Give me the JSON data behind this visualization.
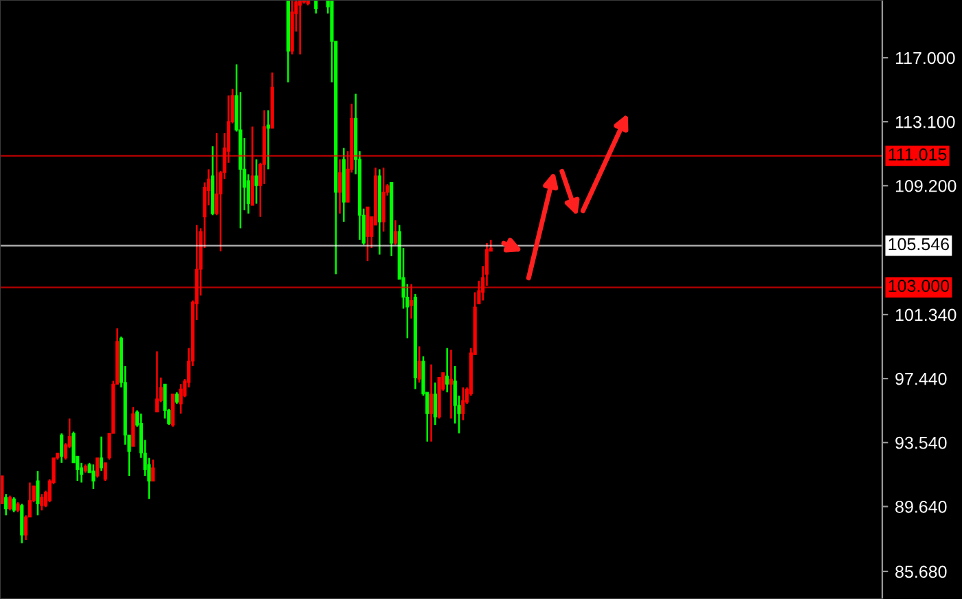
{
  "chart_data": {
    "type": "candlestick",
    "categories": [
      null,
      null,
      null,
      null,
      null,
      null,
      null,
      null,
      null,
      null,
      null,
      null,
      null,
      null,
      null,
      null,
      null,
      null,
      null,
      null,
      null,
      null,
      null,
      null,
      null,
      null,
      null,
      null,
      null,
      null,
      null,
      null,
      null,
      null,
      null,
      null,
      null,
      null,
      null,
      null,
      null,
      null,
      null,
      null,
      null,
      null,
      null,
      null,
      null,
      null,
      null,
      null,
      null,
      null,
      null,
      null,
      null,
      null,
      null,
      null,
      null,
      null,
      null,
      null,
      null,
      null,
      null,
      null,
      null,
      null,
      null,
      null,
      null,
      null,
      null,
      null,
      null,
      null,
      null,
      null,
      null,
      null,
      null,
      null,
      null,
      null,
      null,
      null,
      null,
      null,
      null,
      null,
      null,
      null,
      null,
      null,
      null,
      null,
      null,
      null,
      null,
      null,
      null,
      null,
      null,
      null,
      null,
      null,
      null,
      null,
      null,
      null,
      null,
      null,
      null,
      null,
      null,
      null,
      null,
      null,
      null,
      null,
      null,
      null,
      null,
      null,
      null,
      null,
      null,
      null,
      null,
      null,
      null,
      null,
      null,
      null,
      null,
      null,
      null,
      null,
      null,
      null,
      null,
      null,
      null,
      null,
      null,
      null,
      null,
      null,
      null,
      null,
      null,
      null,
      null,
      null,
      null,
      null,
      null,
      null,
      null,
      null,
      null,
      null,
      null,
      null,
      null,
      null,
      null,
      null,
      null,
      null,
      null,
      null,
      null,
      null,
      null,
      null,
      null,
      null,
      null,
      null,
      null,
      null,
      null,
      null,
      null,
      null,
      null,
      null,
      null,
      null,
      null,
      null,
      null,
      null,
      null,
      null,
      null,
      null,
      null,
      null,
      null,
      null,
      null,
      null,
      null,
      null,
      null,
      null,
      null,
      null,
      null,
      null,
      null,
      null,
      null,
      null,
      null,
      null,
      null,
      null
    ],
    "ohlc": [
      [
        89.8,
        91.5,
        89.8,
        91.5
      ],
      [
        90.2,
        90.4,
        89.1,
        89.5
      ],
      [
        89.5,
        90.3,
        89.4,
        90.2
      ],
      [
        90.1,
        90.2,
        89.3,
        89.4
      ],
      [
        89.4,
        89.9,
        89.3,
        89.8
      ],
      [
        89.7,
        89.8,
        87.4,
        87.9
      ],
      [
        87.9,
        89.1,
        87.6,
        89.0
      ],
      [
        89.0,
        91.1,
        89.0,
        90.0
      ],
      [
        90.0,
        90.9,
        89.9,
        90.9
      ],
      [
        91.2,
        91.8,
        89.1,
        89.8
      ],
      [
        89.7,
        90.4,
        89.4,
        90.2
      ],
      [
        89.7,
        90.6,
        89.6,
        90.5
      ],
      [
        90.0,
        91.3,
        89.9,
        91.2
      ],
      [
        91.1,
        92.6,
        91.0,
        92.6
      ],
      [
        92.6,
        92.9,
        92.5,
        92.9
      ],
      [
        94.0,
        94.1,
        92.3,
        92.7
      ],
      [
        92.6,
        93.5,
        92.5,
        93.4
      ],
      [
        93.3,
        95.0,
        93.2,
        93.9
      ],
      [
        94.1,
        94.2,
        92.3,
        92.3
      ],
      [
        92.7,
        92.7,
        91.2,
        91.9
      ],
      [
        92.0,
        92.3,
        91.1,
        91.6
      ],
      [
        91.8,
        92.2,
        91.7,
        92.1
      ],
      [
        92.2,
        92.3,
        91.7,
        91.7
      ],
      [
        91.8,
        92.2,
        90.7,
        91.2
      ],
      [
        91.5,
        92.6,
        91.4,
        92.6
      ],
      [
        92.6,
        93.9,
        91.8,
        92.0
      ],
      [
        91.3,
        92.3,
        91.2,
        92.3
      ],
      [
        92.6,
        94.1,
        92.5,
        94.1
      ],
      [
        94.1,
        97.3,
        94.1,
        97.1
      ],
      [
        97.1,
        100.5,
        97.1,
        99.7
      ],
      [
        99.9,
        100.0,
        96.9,
        97.2
      ],
      [
        97.2,
        98.2,
        93.4,
        94.0
      ],
      [
        94.0,
        94.0,
        91.5,
        93.0
      ],
      [
        93.3,
        95.7,
        93.3,
        95.3
      ],
      [
        95.4,
        95.5,
        94.5,
        94.6
      ],
      [
        94.7,
        95.3,
        92.6,
        92.9
      ],
      [
        92.9,
        93.7,
        91.5,
        91.9
      ],
      [
        92.2,
        92.6,
        90.1,
        91.2
      ],
      [
        91.2,
        92.5,
        91.2,
        92.0
      ],
      [
        95.4,
        99.1,
        95.4,
        96.2
      ],
      [
        96.1,
        97.5,
        96.0,
        96.9
      ],
      [
        97.1,
        97.1,
        95.0,
        95.5
      ],
      [
        95.5,
        95.6,
        94.6,
        94.7
      ],
      [
        94.6,
        96.5,
        94.5,
        96.5
      ],
      [
        96.5,
        96.6,
        95.9,
        96.0
      ],
      [
        95.9,
        97.1,
        95.3,
        96.8
      ],
      [
        96.4,
        97.4,
        96.3,
        97.3
      ],
      [
        97.2,
        99.3,
        96.9,
        98.5
      ],
      [
        98.5,
        102.2,
        98.2,
        102.1
      ],
      [
        102.0,
        106.8,
        101.0,
        104.1
      ],
      [
        104.1,
        106.6,
        102.5,
        106.4
      ],
      [
        107.3,
        109.4,
        105.4,
        109.1
      ],
      [
        108.9,
        110.2,
        108.0,
        109.6
      ],
      [
        109.8,
        111.6,
        107.4,
        107.5
      ],
      [
        107.5,
        112.4,
        107.4,
        108.7
      ],
      [
        108.7,
        110.1,
        105.2,
        110.0
      ],
      [
        110.0,
        112.4,
        109.6,
        111.5
      ],
      [
        111.3,
        114.7,
        110.6,
        113.1
      ],
      [
        113.1,
        115.1,
        113.0,
        114.7
      ],
      [
        114.7,
        116.6,
        112.5,
        112.6
      ],
      [
        112.6,
        114.9,
        106.6,
        110.2
      ],
      [
        110.2,
        112.1,
        107.7,
        109.1
      ],
      [
        109.5,
        109.9,
        107.5,
        108.1
      ],
      [
        108.0,
        112.8,
        108.0,
        109.8
      ],
      [
        109.8,
        110.8,
        108.1,
        109.2
      ],
      [
        109.2,
        110.6,
        107.3,
        110.5
      ],
      [
        110.5,
        113.8,
        109.3,
        112.8
      ],
      [
        112.9,
        113.8,
        110.2,
        112.7
      ],
      [
        112.7,
        116.1,
        112.7,
        115.2
      ],
      null,
      null,
      null,
      [
        120.5,
        120.5,
        115.5,
        117.4
      ],
      [
        117.4,
        120.5,
        117.2,
        119.8
      ],
      [
        119.7,
        120.5,
        118.6,
        120.4
      ],
      [
        120.2,
        120.5,
        117.2,
        120.5
      ],
      [
        120.4,
        120.5,
        120.3,
        120.5
      ],
      [
        120.3,
        120.5,
        120.2,
        120.5
      ],
      null,
      [
        120.5,
        120.5,
        119.7,
        120.0
      ],
      null,
      null,
      [
        120.5,
        120.5,
        119.7,
        120.1
      ],
      [
        120.5,
        120.5,
        115.5,
        118.0
      ],
      [
        118.0,
        118.0,
        103.8,
        108.8
      ],
      [
        108.8,
        110.8,
        107.5,
        110.0
      ],
      [
        110.8,
        111.5,
        107.0,
        108.2
      ],
      [
        108.2,
        111.3,
        108.2,
        110.2
      ],
      [
        110.2,
        114.2,
        110.0,
        113.3
      ],
      [
        113.3,
        114.8,
        109.9,
        110.8
      ],
      [
        110.8,
        111.3,
        105.9,
        107.4
      ],
      [
        107.4,
        107.8,
        105.6,
        105.7
      ],
      [
        106.1,
        107.9,
        104.6,
        107.9
      ],
      [
        106.1,
        107.3,
        105.4,
        107.3
      ],
      [
        106.8,
        110.3,
        106.8,
        109.8
      ],
      [
        109.8,
        110.2,
        105.0,
        107.0
      ],
      [
        107.0,
        110.3,
        106.4,
        108.8
      ],
      [
        108.8,
        109.3,
        108.6,
        109.2
      ],
      [
        109.4,
        109.4,
        104.9,
        105.7
      ],
      [
        105.7,
        107.1,
        105.6,
        106.4
      ],
      [
        106.4,
        106.8,
        103.5,
        103.5
      ],
      [
        103.6,
        105.4,
        101.7,
        102.4
      ],
      [
        102.4,
        103.2,
        99.9,
        101.8
      ],
      [
        101.9,
        103.2,
        101.1,
        102.2
      ],
      [
        102.4,
        102.6,
        96.8,
        97.5
      ],
      [
        97.4,
        99.4,
        97.2,
        98.5
      ],
      [
        98.5,
        98.8,
        96.4,
        96.5
      ],
      [
        96.6,
        96.6,
        93.6,
        95.3
      ],
      [
        95.3,
        98.3,
        93.6,
        96.5
      ],
      [
        96.5,
        97.2,
        94.6,
        95.1
      ],
      [
        95.1,
        97.5,
        95.0,
        97.5
      ],
      [
        96.8,
        97.8,
        96.7,
        97.8
      ],
      [
        97.6,
        99.3,
        96.6,
        97.1
      ],
      [
        97.1,
        99.2,
        95.0,
        97.4
      ],
      [
        97.3,
        98.2,
        94.7,
        95.8
      ],
      [
        95.8,
        96.4,
        94.1,
        95.3
      ],
      [
        95.3,
        96.9,
        94.9,
        96.1
      ],
      [
        96.0,
        96.9,
        95.9,
        96.8
      ],
      [
        96.5,
        99.3,
        96.4,
        99.0
      ],
      [
        98.9,
        102.7,
        98.9,
        101.8
      ],
      [
        102.0,
        103.4,
        102.0,
        102.8
      ],
      [
        102.7,
        104.3,
        102.2,
        103.6
      ],
      [
        103.8,
        105.7,
        103.1,
        105.3
      ],
      [
        105.2,
        105.9,
        105.2,
        105.4
      ],
      null,
      null,
      null,
      null,
      null,
      null,
      null,
      null,
      null,
      null,
      null,
      null,
      null,
      null,
      null,
      null,
      null,
      null,
      null,
      null,
      null,
      null,
      null,
      null,
      null,
      null,
      null,
      null,
      null,
      null,
      null,
      null,
      null,
      null,
      null,
      null,
      null,
      null,
      null,
      null,
      null,
      null,
      null,
      null,
      null,
      null,
      null,
      null,
      null,
      null,
      null,
      null,
      null,
      null,
      null,
      null,
      null,
      null,
      null,
      null,
      null,
      null,
      null,
      null,
      null,
      null,
      null,
      null,
      null,
      null,
      null,
      null,
      null,
      null,
      null,
      null,
      null,
      null,
      null,
      null,
      null,
      null,
      null,
      null,
      null,
      null,
      null,
      null,
      null,
      null,
      null,
      null,
      null,
      null,
      null,
      null,
      null,
      null
    ],
    "colors": [
      "#ff0000",
      "#00ff00",
      "#ff0000",
      "#00ff00",
      "#ff0000",
      "#00ff00",
      "#ff0000",
      "#ff0000",
      "#ff0000",
      "#00ff00",
      "#ff0000",
      "#ff0000",
      "#ff0000",
      "#ff0000",
      "#ff0000",
      "#00ff00",
      "#ff0000",
      "#ff0000",
      "#00ff00",
      "#00ff00",
      "#00ff00",
      "#ff0000",
      "#00ff00",
      "#00ff00",
      "#ff0000",
      "#00ff00",
      "#ff0000",
      "#ff0000",
      "#ff0000",
      "#ff0000",
      "#00ff00",
      "#00ff00",
      "#00ff00",
      "#ff0000",
      "#00ff00",
      "#00ff00",
      "#00ff00",
      "#00ff00",
      "#ff0000",
      "#ff0000",
      "#ff0000",
      "#00ff00",
      "#00ff00",
      "#ff0000",
      "#00ff00",
      "#ff0000",
      "#ff0000",
      "#ff0000",
      "#ff0000",
      "#ff0000",
      "#ff0000",
      "#ff0000",
      "#ff0000",
      "#00ff00",
      "#ff0000",
      "#ff0000",
      "#ff0000",
      "#ff0000",
      "#ff0000",
      "#00ff00",
      "#00ff00",
      "#00ff00",
      "#00ff00",
      "#ff0000",
      "#00ff00",
      "#ff0000",
      "#ff0000",
      "#00ff00",
      "#ff0000",
      null,
      null,
      null,
      "#00ff00",
      "#ff0000",
      "#ff0000",
      "#ff0000",
      "#ff0000",
      "#ff0000",
      null,
      "#00ff00",
      null,
      null,
      "#00ff00",
      "#00ff00",
      "#00ff00",
      "#ff0000",
      "#00ff00",
      "#ff0000",
      "#ff0000",
      "#00ff00",
      "#00ff00",
      "#00ff00",
      "#ff0000",
      "#ff0000",
      "#ff0000",
      "#00ff00",
      "#ff0000",
      "#ff0000",
      "#00ff00",
      "#ff0000",
      "#00ff00",
      "#00ff00",
      "#00ff00",
      "#ff0000",
      "#00ff00",
      "#ff0000",
      "#00ff00",
      "#00ff00",
      "#ff0000",
      "#00ff00",
      "#ff0000",
      "#ff0000",
      "#00ff00",
      "#ff0000",
      "#00ff00",
      "#00ff00",
      "#ff0000",
      "#ff0000",
      "#ff0000",
      "#ff0000",
      "#ff0000",
      "#ff0000",
      "#ff0000",
      "#ff0000",
      null,
      null,
      null,
      null,
      null,
      null,
      null,
      null,
      null,
      null,
      null,
      null,
      null,
      null,
      null,
      null,
      null,
      null,
      null,
      null,
      null,
      null,
      null,
      null,
      null,
      null,
      null,
      null,
      null,
      null,
      null,
      null,
      null,
      null,
      null,
      null,
      null,
      null,
      null,
      null,
      null,
      null,
      null,
      null,
      null,
      null,
      null,
      null,
      null,
      null,
      null,
      null,
      null,
      null,
      null,
      null,
      null,
      null,
      null,
      null,
      null,
      null,
      null,
      null,
      null,
      null,
      null,
      null,
      null,
      null,
      null,
      null,
      null,
      null,
      null,
      null,
      null,
      null,
      null,
      null,
      null,
      null,
      null,
      null,
      null,
      null,
      null,
      null,
      null,
      null,
      null,
      null,
      null,
      null,
      null,
      null,
      null,
      null
    ],
    "ylim": [
      84.0,
      120.52
    ],
    "yticks": [
      {
        "value": 117,
        "label": "117.000"
      },
      {
        "value": 113.1,
        "label": "113.100"
      },
      {
        "value": 109.2,
        "label": "109.200"
      },
      {
        "value": 101.34,
        "label": "101.340"
      },
      {
        "value": 97.44,
        "label": "97.440"
      },
      {
        "value": 93.54,
        "label": "93.540"
      },
      {
        "value": 89.64,
        "label": "89.640"
      },
      {
        "value": 85.68,
        "label": "85.680"
      }
    ],
    "ref_lines": [
      {
        "axis": "y",
        "value": 111.015,
        "label": "111.015",
        "color": "#ff0000"
      },
      {
        "axis": "y",
        "value": 105.546,
        "label": "105.546",
        "color": "#ffffff"
      },
      {
        "axis": "y",
        "value": 103.0,
        "label": "103.000",
        "color": "#ff0000"
      }
    ],
    "tick_labels": "y"
  }
}
